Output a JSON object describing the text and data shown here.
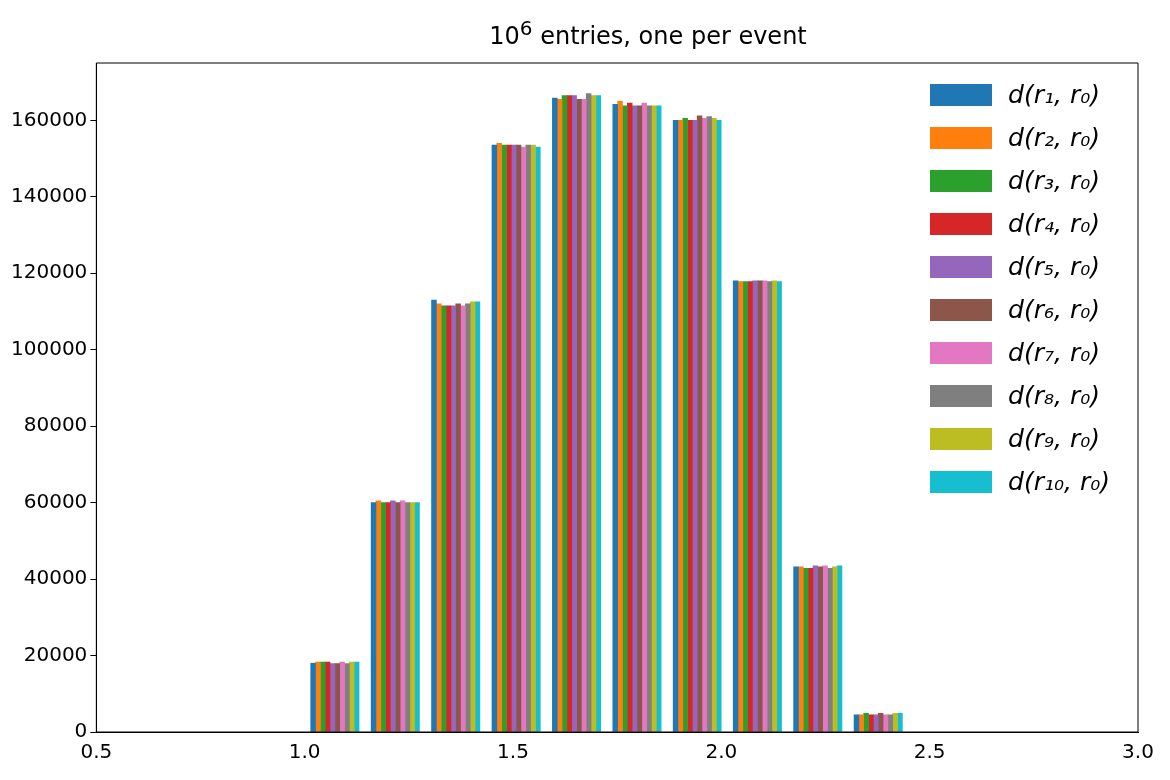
{
  "chart_data": {
    "type": "histogram",
    "title": "10$^{6}$ entries, one per event",
    "bins": [
      1.0,
      1.145,
      1.29,
      1.435,
      1.58,
      1.725,
      1.87,
      2.014,
      2.159,
      2.304,
      2.449
    ],
    "series": [
      {
        "name": "d(r₁, r₀)",
        "color": "#1f77b4",
        "values": [
          18000,
          60000,
          113000,
          153500,
          165800,
          164200,
          160000,
          118000,
          43200,
          4500
        ]
      },
      {
        "name": "d(r₂, r₀)",
        "color": "#ff7f0e",
        "values": [
          18300,
          60500,
          112000,
          154000,
          165500,
          165000,
          160000,
          117800,
          43200,
          4500
        ]
      },
      {
        "name": "d(r₃, r₀)",
        "color": "#2ca02c",
        "values": [
          18300,
          60000,
          111500,
          153500,
          166500,
          163800,
          160500,
          117800,
          42800,
          4900
        ]
      },
      {
        "name": "d(r₄, r₀)",
        "color": "#d62728",
        "values": [
          18300,
          60000,
          111500,
          153500,
          166500,
          164500,
          160000,
          117800,
          42800,
          4500
        ]
      },
      {
        "name": "d(r₅, r₀)",
        "color": "#9467bd",
        "values": [
          17900,
          60500,
          111500,
          153500,
          166500,
          163800,
          160000,
          118000,
          43500,
          4500
        ]
      },
      {
        "name": "d(r₆, r₀)",
        "color": "#8c564b",
        "values": [
          17900,
          60000,
          112000,
          153500,
          165500,
          163800,
          161200,
          118000,
          43200,
          4900
        ]
      },
      {
        "name": "d(r₇, r₀)",
        "color": "#e377c2",
        "values": [
          18300,
          60500,
          111500,
          153000,
          165500,
          164500,
          160500,
          118000,
          43500,
          4500
        ]
      },
      {
        "name": "d(r₈, r₀)",
        "color": "#7f7f7f",
        "values": [
          17900,
          60000,
          112000,
          153500,
          167000,
          163800,
          161000,
          117800,
          42800,
          4500
        ]
      },
      {
        "name": "d(r₉, r₀)",
        "color": "#bcbd22",
        "values": [
          18300,
          60000,
          112500,
          153500,
          166500,
          163800,
          160500,
          118000,
          43200,
          4900
        ]
      },
      {
        "name": "d(r₁₀, r₀)",
        "color": "#17becf",
        "values": [
          18300,
          60000,
          112500,
          153000,
          166500,
          163800,
          160000,
          117800,
          43500,
          4900
        ]
      }
    ],
    "xlim": [
      0.5,
      3.0
    ],
    "xticks": [
      0.5,
      {
        "value": 1,
        "label": "1.0"
      },
      1.5,
      {
        "value": 2,
        "label": "2.0"
      },
      2.5,
      {
        "value": 3,
        "label": "3.0"
      }
    ],
    "ylim": [
      0,
      175000
    ],
    "yticks": [
      0,
      20000,
      40000,
      60000,
      80000,
      100000,
      120000,
      140000,
      160000
    ],
    "grid": false,
    "legend": "top right"
  }
}
